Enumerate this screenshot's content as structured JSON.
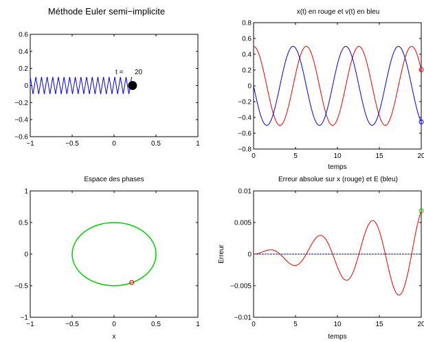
{
  "chart_data": [
    {
      "type": "line",
      "title": "Méthode Euler semi−implicite",
      "xlim": [
        -1,
        1
      ],
      "ylim": [
        -0.6,
        0.6
      ],
      "x_ticks": [
        -1,
        -0.5,
        0,
        0.5,
        1
      ],
      "y_ticks": [
        -0.6,
        -0.4,
        -0.2,
        0,
        0.2,
        0.4,
        0.6
      ],
      "x_tick_labels": [
        "−1",
        "−0.5",
        "0",
        "0.5",
        "1"
      ],
      "y_tick_labels": [
        "−0.6",
        "−0.4",
        "−0.2",
        "0",
        "0.2",
        "0.4",
        "0.6"
      ],
      "annotation_label": "t =",
      "annotation_value": "20",
      "spring": {
        "x_start": -1.0,
        "x_end": 0.21,
        "amplitude": 0.1,
        "coils": 18,
        "color": "#0000cc"
      },
      "mass": {
        "x": 0.22,
        "y": 0.0,
        "color": "#000000"
      },
      "grid": false
    },
    {
      "type": "line",
      "title": "x(t) en rouge et v(t) en bleu",
      "xlabel": "temps",
      "xlim": [
        0,
        20
      ],
      "ylim": [
        -0.8,
        0.8
      ],
      "x_ticks": [
        0,
        5,
        10,
        15,
        20
      ],
      "y_ticks": [
        -0.8,
        -0.6,
        -0.4,
        -0.2,
        0,
        0.2,
        0.4,
        0.6,
        0.8
      ],
      "x_tick_labels": [
        "0",
        "5",
        "10",
        "15",
        "20"
      ],
      "y_tick_labels": [
        "−0.8",
        "−0.6",
        "−0.4",
        "−0.2",
        "0",
        "0.2",
        "0.4",
        "0.6",
        "0.8"
      ],
      "omega": 1.0,
      "amplitude": 0.5,
      "series": [
        {
          "id": "x",
          "color": "#dd0000",
          "formula": "A*cos(w*t)"
        },
        {
          "id": "v",
          "color": "#0000cc",
          "formula": "-A*sin(w*t)"
        }
      ],
      "end_marker_color": "#dd0000",
      "grid": false
    },
    {
      "type": "scatter",
      "title": "Espace des phases",
      "xlabel": "x",
      "ylabel": "",
      "xlim": [
        -1,
        1
      ],
      "ylim": [
        -1,
        1
      ],
      "x_ticks": [
        -1,
        -0.5,
        0,
        0.5,
        1
      ],
      "y_ticks": [
        -1,
        -0.5,
        0,
        0.5,
        1
      ],
      "x_tick_labels": [
        "−1",
        "−0.5",
        "0",
        "0.5",
        "1"
      ],
      "y_tick_labels": [
        "−1",
        "−0.5",
        "0",
        "0.5",
        "1"
      ],
      "orbit": {
        "rx": 0.5,
        "ry": 0.5,
        "color": "#00cc00"
      },
      "current_point": {
        "x": 0.21,
        "y": -0.45,
        "color": "#dd0000"
      },
      "grid": false
    },
    {
      "type": "line",
      "title": "Erreur absolue sur x (rouge) et E (bleu)",
      "xlabel": "temps",
      "ylabel": "Erreur",
      "xlim": [
        0,
        20
      ],
      "ylim": [
        -0.01,
        0.01
      ],
      "x_ticks": [
        0,
        5,
        10,
        15,
        20
      ],
      "y_ticks": [
        -0.01,
        -0.005,
        0,
        0.005,
        0.01
      ],
      "x_tick_labels": [
        "0",
        "5",
        "10",
        "15",
        "20"
      ],
      "y_tick_labels": [
        "−0.01",
        "−0.005",
        "0",
        "0.005",
        "0.01"
      ],
      "series": [
        {
          "id": "err_x",
          "color": "#dd0000",
          "growth": 0.000375,
          "omega": 1.0
        },
        {
          "id": "err_E",
          "color": "#0000cc",
          "value": 0.0
        }
      ],
      "end_marker_color": "#00cc00",
      "grid": false
    }
  ]
}
